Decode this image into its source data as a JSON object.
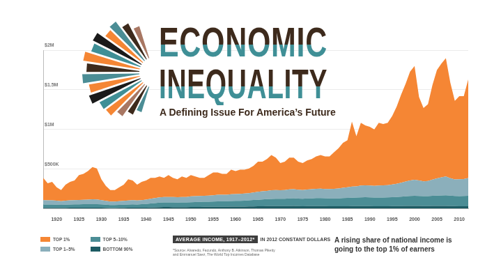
{
  "chart_data": {
    "type": "area",
    "title": "ECONOMIC INEQUALITY",
    "subtitle": "A Defining Issue For America’s Future",
    "annotations": [
      "AVERAGE INCOME, 1917–2012*",
      "IN 2012 CONSTANT DOLLARS",
      "*Source: Alvaredo, Facundo, Anthony B. Atkinson, Thomas Piketty and Emmanuel Saez, The World Top Incomes Database",
      "A rising share of national income is going to the top 1% of earners"
    ],
    "x": [
      1917,
      1918,
      1919,
      1920,
      1921,
      1922,
      1923,
      1924,
      1925,
      1926,
      1927,
      1928,
      1929,
      1930,
      1931,
      1932,
      1933,
      1934,
      1935,
      1936,
      1937,
      1938,
      1939,
      1940,
      1941,
      1942,
      1943,
      1944,
      1945,
      1946,
      1947,
      1948,
      1949,
      1950,
      1951,
      1952,
      1953,
      1954,
      1955,
      1956,
      1957,
      1958,
      1959,
      1960,
      1961,
      1962,
      1963,
      1964,
      1965,
      1966,
      1967,
      1968,
      1969,
      1970,
      1971,
      1972,
      1973,
      1974,
      1975,
      1976,
      1977,
      1978,
      1979,
      1980,
      1981,
      1982,
      1983,
      1984,
      1985,
      1986,
      1987,
      1988,
      1989,
      1990,
      1991,
      1992,
      1993,
      1994,
      1995,
      1996,
      1997,
      1998,
      1999,
      2000,
      2001,
      2002,
      2003,
      2004,
      2005,
      2006,
      2007,
      2008,
      2009,
      2010,
      2011,
      2012
    ],
    "series": [
      {
        "name": "BOTTOM 90%",
        "color": "#1d5b63",
        "values": [
          12000,
          12000,
          12000,
          12000,
          11000,
          12000,
          13000,
          13000,
          13000,
          14000,
          14000,
          14000,
          14000,
          13000,
          12000,
          10000,
          10000,
          11000,
          12000,
          13000,
          14000,
          13000,
          14000,
          15000,
          17000,
          19000,
          21000,
          22000,
          22000,
          21000,
          20000,
          21000,
          21000,
          22000,
          23000,
          23000,
          24000,
          24000,
          25000,
          26000,
          26000,
          26000,
          27000,
          27000,
          27000,
          28000,
          29000,
          30000,
          31000,
          32000,
          33000,
          34000,
          34000,
          33000,
          33000,
          34000,
          35000,
          33000,
          32000,
          33000,
          33000,
          34000,
          34000,
          33000,
          32000,
          31000,
          31000,
          32000,
          32000,
          33000,
          33000,
          34000,
          34000,
          33000,
          32000,
          32000,
          32000,
          32000,
          33000,
          33000,
          34000,
          35000,
          36000,
          36000,
          35000,
          34000,
          34000,
          35000,
          35000,
          35000,
          36000,
          34000,
          33000,
          32000,
          32000,
          32000
        ]
      },
      {
        "name": "TOP 5–10%",
        "color": "#4b8d95",
        "values": [
          42000,
          41000,
          41000,
          40000,
          38000,
          40000,
          41000,
          42000,
          43000,
          43000,
          44000,
          45000,
          45000,
          42000,
          40000,
          37000,
          36000,
          38000,
          39000,
          41000,
          42000,
          41000,
          43000,
          45000,
          49000,
          53000,
          56000,
          58000,
          58000,
          58000,
          57000,
          58000,
          58000,
          61000,
          62000,
          63000,
          64000,
          64000,
          66000,
          68000,
          69000,
          69000,
          71000,
          72000,
          73000,
          75000,
          77000,
          80000,
          83000,
          86000,
          88000,
          91000,
          93000,
          93000,
          94000,
          97000,
          98000,
          96000,
          95000,
          97000,
          98000,
          100000,
          100000,
          99000,
          99000,
          99000,
          100000,
          103000,
          105000,
          107000,
          108000,
          110000,
          111000,
          110000,
          109000,
          110000,
          110000,
          111000,
          113000,
          115000,
          118000,
          122000,
          125000,
          127000,
          126000,
          124000,
          125000,
          128000,
          130000,
          133000,
          135000,
          132000,
          128000,
          128000,
          129000,
          131000
        ]
      },
      {
        "name": "TOP 1–5%",
        "color": "#8bafbb",
        "values": [
          55000,
          53000,
          53000,
          50000,
          47000,
          50000,
          52000,
          53000,
          55000,
          56000,
          57000,
          60000,
          59000,
          53000,
          48000,
          44000,
          44000,
          46000,
          48000,
          51000,
          52000,
          50000,
          52000,
          55000,
          60000,
          63000,
          66000,
          67000,
          68000,
          69000,
          68000,
          70000,
          70000,
          74000,
          75000,
          75000,
          76000,
          77000,
          80000,
          82000,
          82000,
          82000,
          85000,
          86000,
          87000,
          89000,
          91000,
          95000,
          99000,
          102000,
          104000,
          108000,
          110000,
          108000,
          109000,
          113000,
          114000,
          111000,
          110000,
          113000,
          115000,
          118000,
          119000,
          118000,
          119000,
          121000,
          125000,
          130000,
          134000,
          140000,
          142000,
          150000,
          151000,
          150000,
          147000,
          152000,
          153000,
          155000,
          160000,
          167000,
          176000,
          186000,
          196000,
          203000,
          195000,
          188000,
          192000,
          205000,
          218000,
          228000,
          236000,
          220000,
          208000,
          212000,
          214000,
          225000
        ]
      },
      {
        "name": "TOP 1%",
        "color": "#f58634",
        "values": [
          281000,
          216000,
          233000,
          169000,
          141000,
          203000,
          233000,
          248000,
          313000,
          328000,
          360000,
          406000,
          390000,
          265000,
          188000,
          146000,
          147000,
          176000,
          206000,
          268000,
          248000,
          201000,
          230000,
          241000,
          264000,
          255000,
          264000,
          243000,
          276000,
          242000,
          228000,
          258000,
          241000,
          267000,
          247000,
          229000,
          226000,
          259000,
          287000,
          282000,
          264000,
          264000,
          309000,
          290000,
          305000,
          300000,
          311000,
          337000,
          380000,
          373000,
          402000,
          445000,
          407000,
          342000,
          357000,
          400000,
          397000,
          353000,
          339000,
          367000,
          381000,
          409000,
          425000,
          411000,
          411000,
          461000,
          507000,
          566000,
          593000,
          820000,
          632000,
          791000,
          754000,
          741000,
          712000,
          791000,
          773000,
          787000,
          864000,
          973000,
          1112000,
          1233000,
          1373000,
          1434000,
          1054000,
          924000,
          969000,
          1192000,
          1367000,
          1434000,
          1493000,
          1204000,
          991000,
          1048000,
          1045000,
          1242000
        ]
      }
    ],
    "xlim": [
      1917,
      2012
    ],
    "xticks": [
      1920,
      1925,
      1930,
      1935,
      1940,
      1945,
      1950,
      1955,
      1960,
      1965,
      1970,
      1975,
      1980,
      1985,
      1990,
      1995,
      2000,
      2005,
      2010
    ],
    "ylim": [
      0,
      2000000
    ],
    "yticks": [
      {
        "value": 500000,
        "label": "$500K"
      },
      {
        "value": 1000000,
        "label": "$1M"
      },
      {
        "value": 1500000,
        "label": "$1.5M"
      },
      {
        "value": 2000000,
        "label": "$2M"
      }
    ],
    "stacked": true,
    "grid": true,
    "legend": "bottom"
  }
}
